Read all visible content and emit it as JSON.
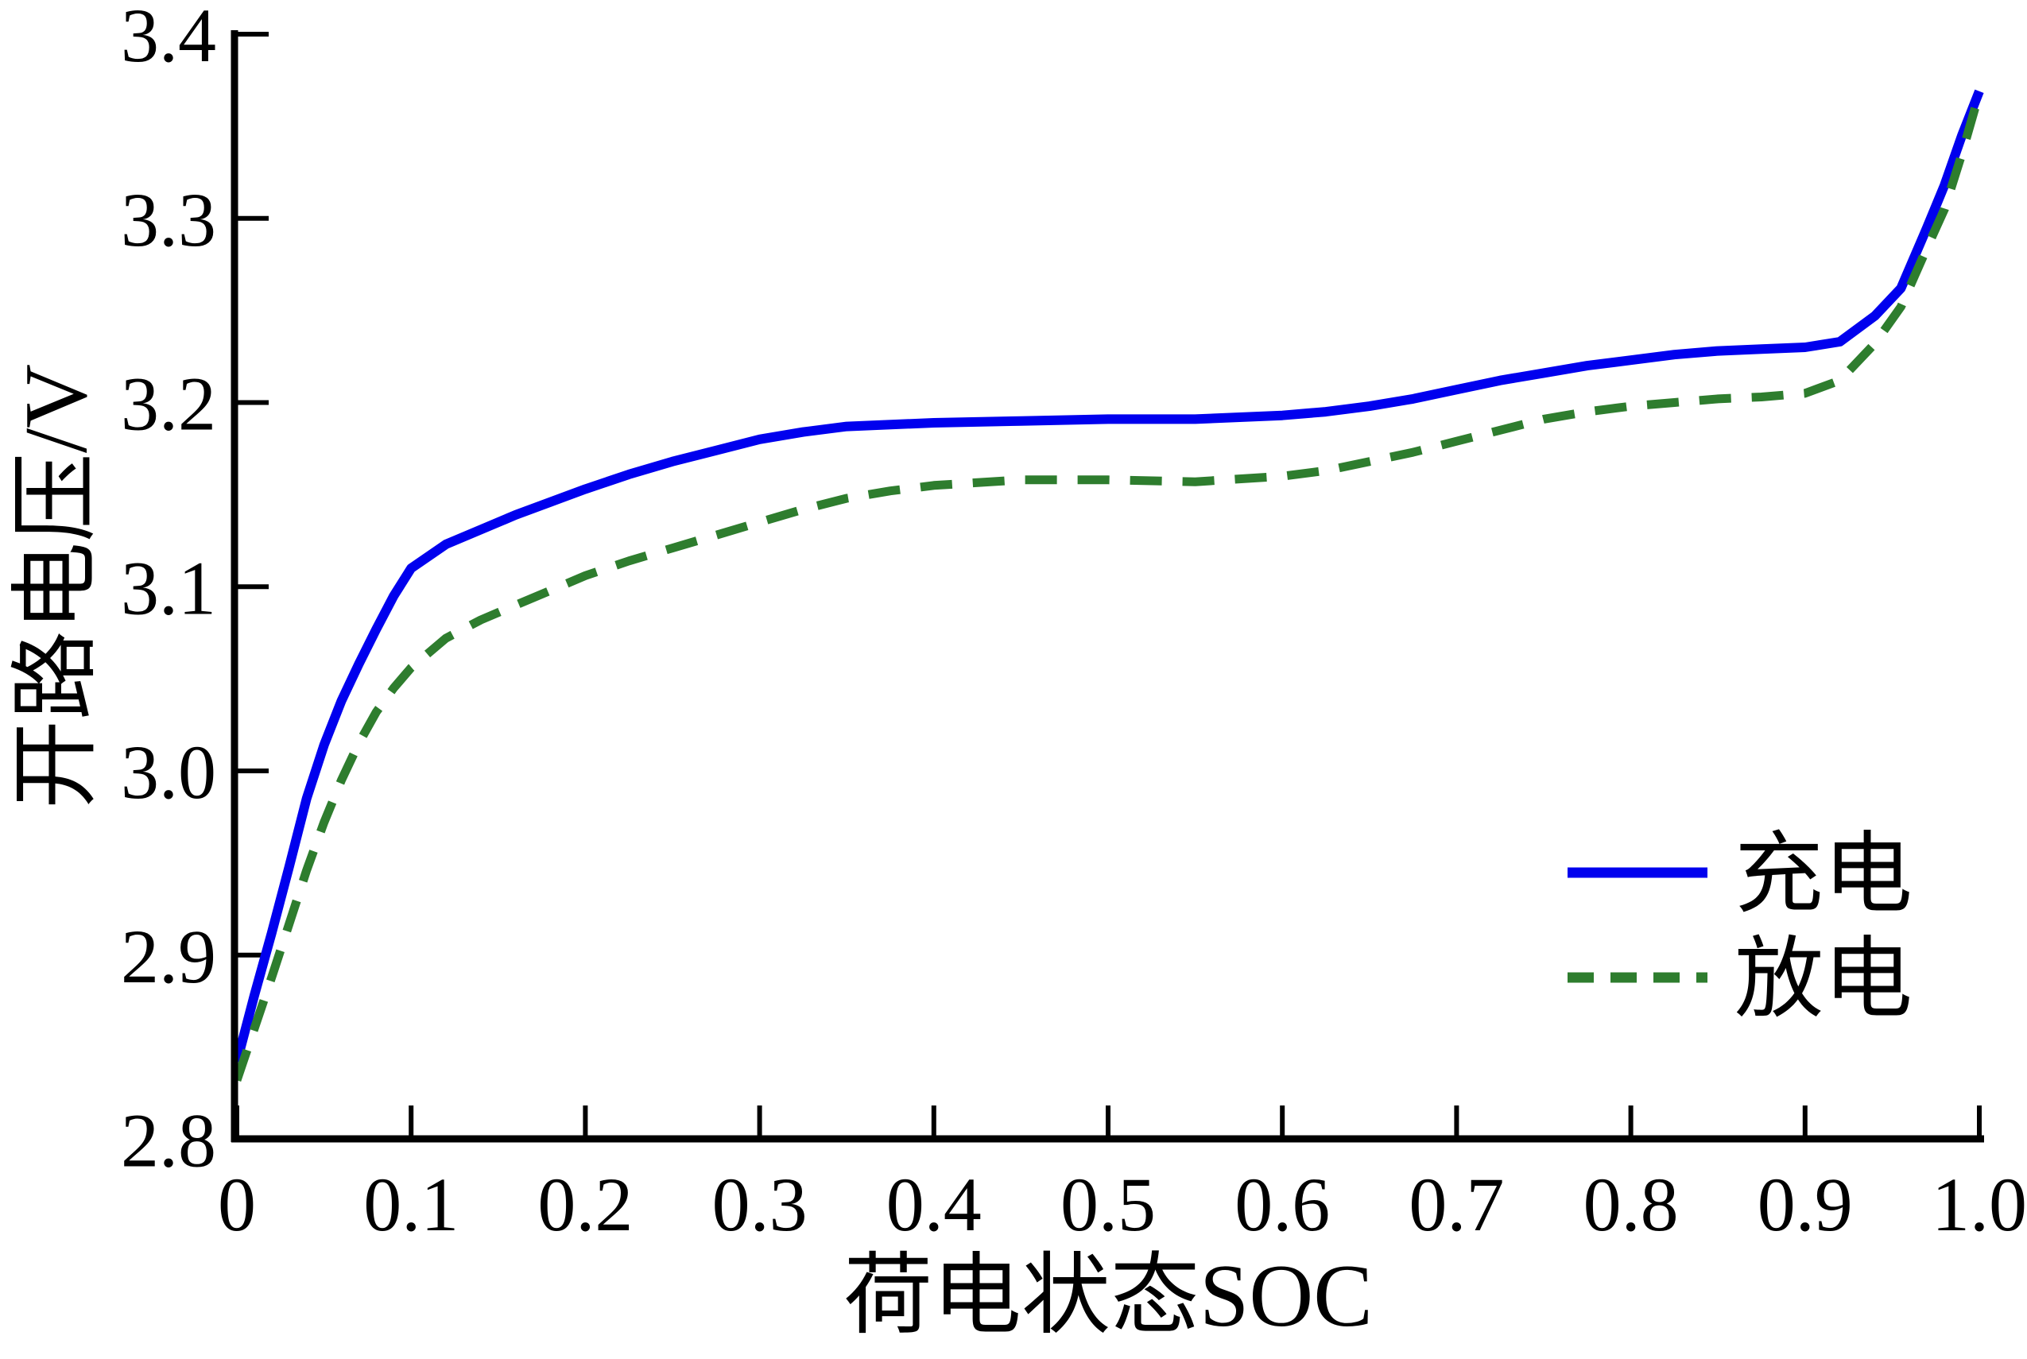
{
  "chart_data": {
    "type": "line",
    "title": "",
    "xlabel": "荷电状态SOC",
    "ylabel": "开路电压/V",
    "xlim": [
      0,
      1.0
    ],
    "ylim": [
      2.8,
      3.4
    ],
    "grid": false,
    "legend_position": "center right",
    "x_ticks": [
      {
        "v": 0,
        "label": "0"
      },
      {
        "v": 0.1,
        "label": "0.1"
      },
      {
        "v": 0.2,
        "label": "0.2"
      },
      {
        "v": 0.3,
        "label": "0.3"
      },
      {
        "v": 0.4,
        "label": "0.4"
      },
      {
        "v": 0.5,
        "label": "0.5"
      },
      {
        "v": 0.6,
        "label": "0.6"
      },
      {
        "v": 0.7,
        "label": "0.7"
      },
      {
        "v": 0.8,
        "label": "0.8"
      },
      {
        "v": 0.9,
        "label": "0.9"
      },
      {
        "v": 1.0,
        "label": "1.0"
      }
    ],
    "y_ticks": [
      {
        "v": 2.8,
        "label": "2.8"
      },
      {
        "v": 2.9,
        "label": "2.9"
      },
      {
        "v": 3.0,
        "label": "3.0"
      },
      {
        "v": 3.1,
        "label": "3.1"
      },
      {
        "v": 3.2,
        "label": "3.2"
      },
      {
        "v": 3.3,
        "label": "3.3"
      },
      {
        "v": 3.4,
        "label": "3.4"
      }
    ],
    "series": [
      {
        "id": "charge",
        "name": "充电",
        "color": "#0000EE",
        "line_style": "solid",
        "x": [
          0,
          0.01,
          0.02,
          0.03,
          0.04,
          0.05,
          0.06,
          0.07,
          0.08,
          0.09,
          0.1,
          0.12,
          0.14,
          0.16,
          0.18,
          0.2,
          0.225,
          0.25,
          0.275,
          0.3,
          0.325,
          0.35,
          0.4,
          0.45,
          0.5,
          0.55,
          0.6,
          0.625,
          0.65,
          0.675,
          0.7,
          0.725,
          0.75,
          0.775,
          0.8,
          0.825,
          0.85,
          0.875,
          0.9,
          0.92,
          0.94,
          0.955,
          0.97,
          0.98,
          0.99,
          1.0
        ],
        "y": [
          2.842,
          2.878,
          2.912,
          2.948,
          2.985,
          3.014,
          3.038,
          3.058,
          3.077,
          3.095,
          3.11,
          3.123,
          3.131,
          3.139,
          3.146,
          3.153,
          3.161,
          3.168,
          3.174,
          3.18,
          3.184,
          3.187,
          3.189,
          3.19,
          3.191,
          3.191,
          3.193,
          3.195,
          3.198,
          3.202,
          3.207,
          3.212,
          3.216,
          3.22,
          3.223,
          3.226,
          3.228,
          3.229,
          3.23,
          3.233,
          3.247,
          3.262,
          3.295,
          3.318,
          3.345,
          3.369
        ]
      },
      {
        "id": "discharge",
        "name": "放电",
        "color": "#2E7D2E",
        "line_style": "dashed",
        "x": [
          0,
          0.01,
          0.02,
          0.03,
          0.04,
          0.05,
          0.06,
          0.07,
          0.08,
          0.09,
          0.1,
          0.12,
          0.14,
          0.16,
          0.18,
          0.2,
          0.225,
          0.25,
          0.275,
          0.3,
          0.325,
          0.35,
          0.375,
          0.4,
          0.45,
          0.5,
          0.55,
          0.6,
          0.625,
          0.65,
          0.675,
          0.7,
          0.725,
          0.75,
          0.775,
          0.8,
          0.825,
          0.85,
          0.875,
          0.9,
          0.92,
          0.94,
          0.955,
          0.97,
          0.98,
          0.99,
          1.0
        ],
        "y": [
          2.832,
          2.86,
          2.888,
          2.917,
          2.946,
          2.972,
          2.995,
          3.015,
          3.032,
          3.045,
          3.056,
          3.072,
          3.082,
          3.09,
          3.098,
          3.106,
          3.114,
          3.121,
          3.128,
          3.135,
          3.142,
          3.148,
          3.152,
          3.155,
          3.158,
          3.158,
          3.157,
          3.16,
          3.163,
          3.168,
          3.173,
          3.179,
          3.185,
          3.191,
          3.195,
          3.198,
          3.2,
          3.202,
          3.203,
          3.205,
          3.212,
          3.232,
          3.252,
          3.284,
          3.305,
          3.335,
          3.368
        ]
      }
    ]
  }
}
